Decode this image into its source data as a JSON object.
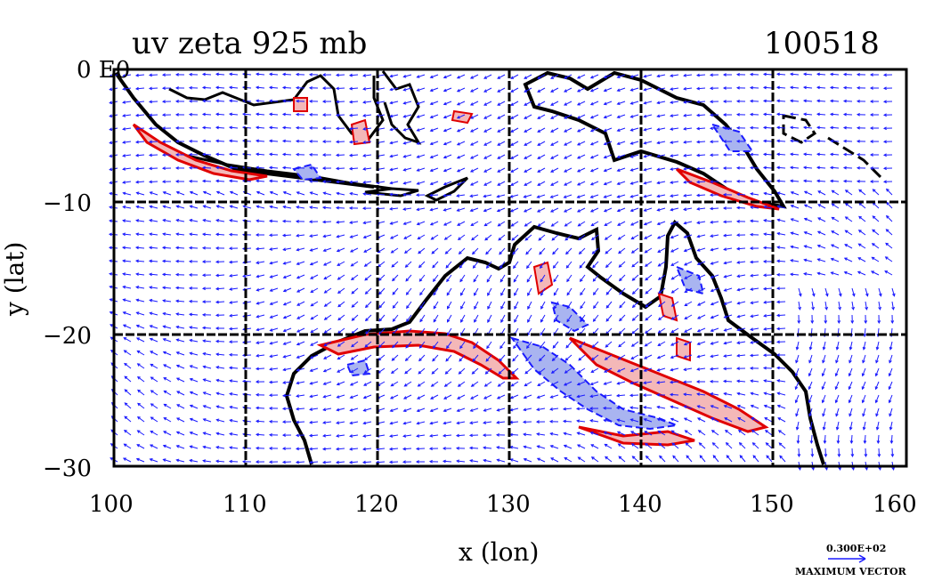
{
  "title_left": "uv zeta 925 mb",
  "title_right": "100518",
  "corner_label": "0 E0",
  "x_axis_label": "x (lon)",
  "y_axis_label": "y (lat)",
  "x_ticks": [
    "100",
    "110",
    "120",
    "130",
    "140",
    "150",
    "160"
  ],
  "y_ticks": [
    "0",
    "−10",
    "−20",
    "−30"
  ],
  "vector_scale_value": "0.300E+02",
  "vector_scale_label": "MAXIMUM VECTOR",
  "colors": {
    "coast": "#000000",
    "grid": "#000000",
    "vectors": "#1a1aff",
    "positive_contour": "#e00000",
    "positive_fill": "#f4b8b8",
    "negative_contour": "#1a1aff",
    "negative_fill": "#a9b4f0"
  },
  "map": {
    "lon_range": [
      100,
      160
    ],
    "lat_range": [
      -30,
      0
    ],
    "grid_lons": [
      110,
      120,
      130,
      140,
      150
    ],
    "grid_lats": [
      -10,
      -20
    ]
  }
}
